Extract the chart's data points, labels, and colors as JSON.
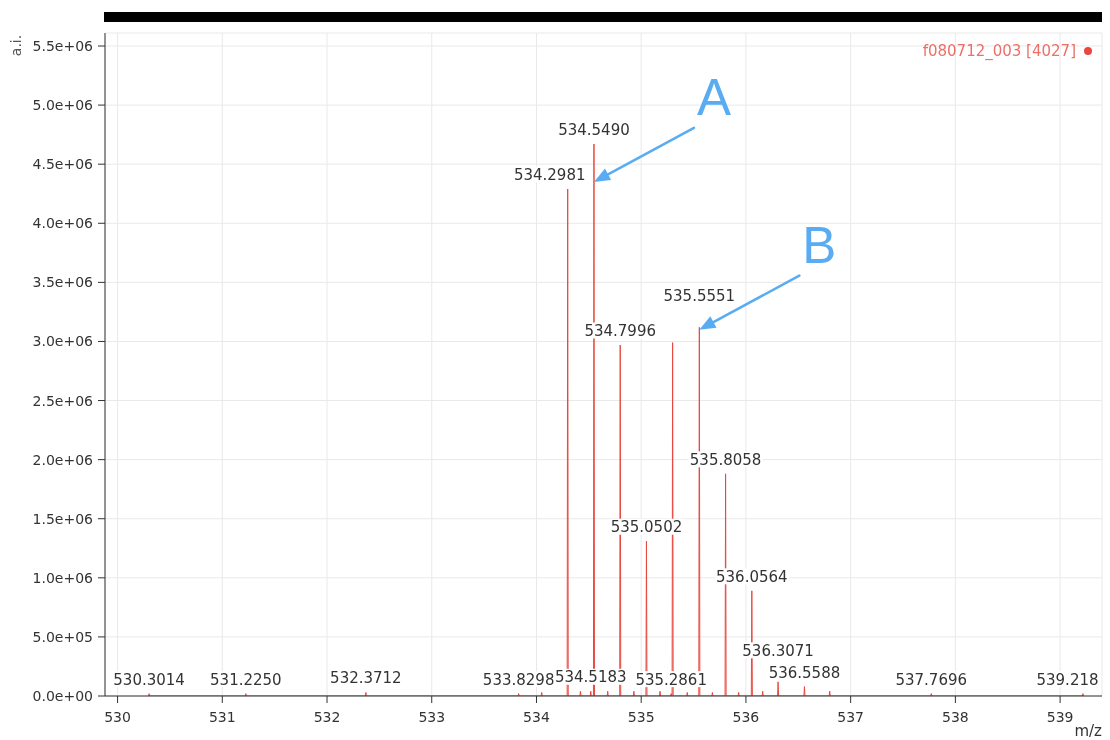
{
  "chart_data": {
    "type": "line",
    "xlabel": "m/z",
    "ylabel": "a.i.",
    "xlim": [
      529.88,
      539.4
    ],
    "ylim": [
      0,
      5610000
    ],
    "xticks": [
      530,
      531,
      532,
      533,
      534,
      535,
      536,
      537,
      538,
      539
    ],
    "yticks": [
      {
        "value": 0,
        "label": "0.0e+00"
      },
      {
        "value": 500000,
        "label": "5.0e+05"
      },
      {
        "value": 1000000,
        "label": "1.0e+06"
      },
      {
        "value": 1500000,
        "label": "1.5e+06"
      },
      {
        "value": 2000000,
        "label": "2.0e+06"
      },
      {
        "value": 2500000,
        "label": "2.5e+06"
      },
      {
        "value": 3000000,
        "label": "3.0e+06"
      },
      {
        "value": 3500000,
        "label": "3.5e+06"
      },
      {
        "value": 4000000,
        "label": "4.0e+06"
      },
      {
        "value": 4500000,
        "label": "4.5e+06"
      },
      {
        "value": 5000000,
        "label": "5.0e+06"
      },
      {
        "value": 5500000,
        "label": "5.5e+06"
      }
    ],
    "grid": true,
    "legend": "top right",
    "series": [
      {
        "name": "f080712_003 [4027]",
        "color": "#e8483e",
        "x": [
          530.2964,
          530.3014,
          530.3064,
          531.22,
          531.225,
          531.23,
          532.3662,
          532.3712,
          532.3762,
          533.8248,
          533.8298,
          533.8348,
          534.045,
          534.05,
          534.055,
          534.2931,
          534.2981,
          534.3031,
          534.415,
          534.42,
          534.425,
          534.5133,
          534.5183,
          534.5233,
          534.544,
          534.549,
          534.554,
          534.675,
          534.68,
          534.685,
          534.7946,
          534.7996,
          534.8046,
          534.925,
          534.93,
          534.935,
          535.0452,
          535.0502,
          535.0552,
          535.175,
          535.18,
          535.185,
          535.2811,
          535.2861,
          535.2911,
          535.295,
          535.3,
          535.305,
          535.435,
          535.44,
          535.445,
          535.5501,
          535.5551,
          535.5601,
          535.675,
          535.68,
          535.685,
          535.8008,
          535.8058,
          535.8108,
          535.925,
          535.93,
          535.935,
          536.0514,
          536.0564,
          536.0614,
          536.155,
          536.16,
          536.165,
          536.3021,
          536.3071,
          536.3121,
          536.5538,
          536.5588,
          536.5638,
          536.795,
          536.8,
          536.805,
          537.7646,
          537.7696,
          537.7746,
          539.213,
          539.218,
          539.223
        ],
        "values": [
          0,
          20000,
          0,
          0,
          20000,
          0,
          0,
          30000,
          0,
          0,
          20000,
          0,
          0,
          30000,
          0,
          0,
          4290000,
          0,
          0,
          40000,
          0,
          0,
          40000,
          0,
          0,
          4670000,
          0,
          0,
          40000,
          0,
          0,
          2970000,
          0,
          0,
          40000,
          0,
          0,
          1310000,
          0,
          0,
          40000,
          0,
          0,
          20000,
          0,
          0,
          2990000,
          0,
          0,
          30000,
          0,
          0,
          3120000,
          0,
          0,
          30000,
          0,
          0,
          1880000,
          0,
          0,
          30000,
          0,
          0,
          890000,
          0,
          0,
          40000,
          0,
          0,
          120000,
          0,
          0,
          80000,
          0,
          0,
          40000,
          0,
          0,
          20000,
          0,
          0,
          20000,
          0
        ]
      }
    ],
    "annotations": [
      {
        "text": "530.3014",
        "x": 530.3014,
        "y": 20000
      },
      {
        "text": "531.2250",
        "x": 531.225,
        "y": 20000
      },
      {
        "text": "532.3712",
        "x": 532.3712,
        "y": 30000
      },
      {
        "text": "533.8298",
        "x": 533.8298,
        "y": 20000
      },
      {
        "text": "534.2981",
        "x": 534.2981,
        "y": 4290000
      },
      {
        "text": "534.5183",
        "x": 534.5183,
        "y": 40000
      },
      {
        "text": "534.5490",
        "x": 534.549,
        "y": 4670000
      },
      {
        "text": "534.7996",
        "x": 534.7996,
        "y": 2970000
      },
      {
        "text": "535.0502",
        "x": 535.0502,
        "y": 1310000
      },
      {
        "text": "535.2861",
        "x": 535.2861,
        "y": 20000
      },
      {
        "text": "535.5551",
        "x": 535.5551,
        "y": 3120000
      },
      {
        "text": "535.8058",
        "x": 535.8058,
        "y": 1880000
      },
      {
        "text": "536.0564",
        "x": 536.0564,
        "y": 890000
      },
      {
        "text": "536.3071",
        "x": 536.3071,
        "y": 120000
      },
      {
        "text": "536.5588",
        "x": 536.5588,
        "y": 80000
      },
      {
        "text": "537.7696",
        "x": 537.7696,
        "y": 20000
      },
      {
        "text": "539.218",
        "x": 539.218,
        "y": 20000
      },
      {
        "text": "A",
        "x": 534.549,
        "y": 4350000
      },
      {
        "text": "B",
        "x": 535.5551,
        "y": 3100000
      }
    ]
  }
}
